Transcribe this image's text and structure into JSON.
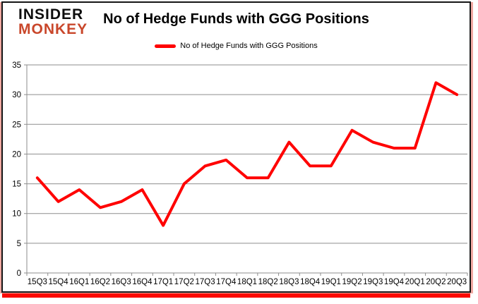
{
  "logo": {
    "line1": "INSIDER",
    "line2": "MONKEY",
    "line1_color": "#0d0d0d",
    "line2_color": "#c9472b"
  },
  "chart_data": {
    "type": "line",
    "title": "No of Hedge Funds with GGG Positions",
    "legend": "No of Hedge Funds with GGG Positions",
    "legend_position": "top",
    "categories": [
      "15Q3",
      "15Q4",
      "16Q1",
      "16Q2",
      "16Q3",
      "16Q4",
      "17Q1",
      "17Q2",
      "17Q3",
      "17Q4",
      "18Q1",
      "18Q2",
      "18Q3",
      "18Q4",
      "19Q1",
      "19Q2",
      "19Q3",
      "19Q4",
      "20Q1",
      "20Q2",
      "20Q3"
    ],
    "values": [
      16,
      12,
      14,
      11,
      12,
      14,
      8,
      15,
      18,
      19,
      16,
      16,
      22,
      18,
      18,
      24,
      22,
      21,
      21,
      32,
      30
    ],
    "xlabel": "",
    "ylabel": "",
    "ylim": [
      0,
      35
    ],
    "yticks": [
      0,
      5,
      10,
      15,
      20,
      25,
      30,
      35
    ],
    "grid": true,
    "line_color": "#ff0000",
    "grid_color": "#8e8e8e",
    "axis_text_color": "#000000",
    "frame_shadow_color": "#fb0a00"
  }
}
